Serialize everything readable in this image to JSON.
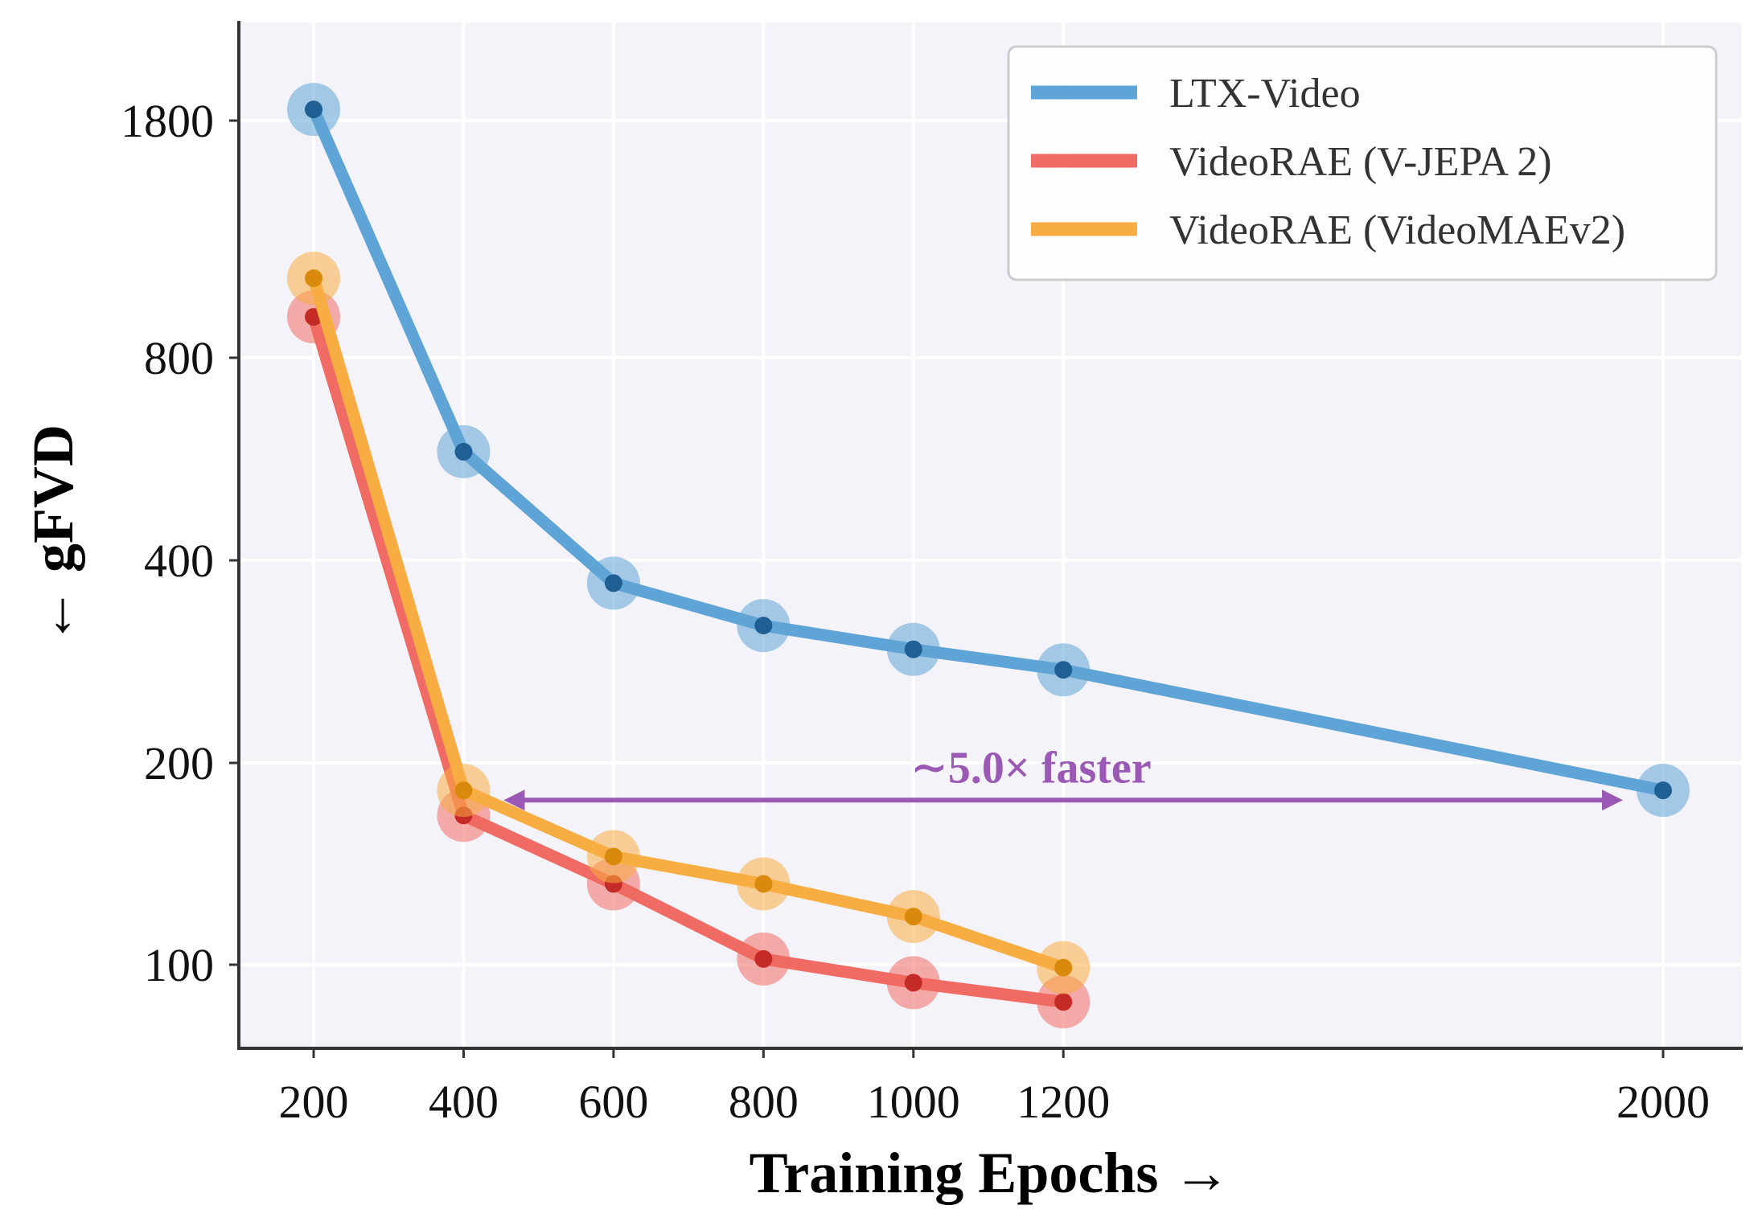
{
  "chart_data": {
    "type": "line",
    "title": "",
    "xlabel": "Training Epochs →",
    "ylabel": "← gFVD",
    "x_ticks": [
      200,
      400,
      600,
      800,
      1000,
      1200,
      2000
    ],
    "y_ticks": [
      1800,
      800,
      400,
      200,
      100
    ],
    "y_scale": "log",
    "xlim": [
      100,
      2100
    ],
    "ylim": [
      80,
      2300
    ],
    "grid": true,
    "legend_position": "top-right",
    "series": [
      {
        "name": "LTX-Video",
        "color": "#5fa4d6",
        "dot_color": "#1f5f93",
        "x": [
          200,
          400,
          600,
          800,
          1000,
          1200,
          2000
        ],
        "y": [
          1870,
          580,
          370,
          320,
          295,
          275,
          182
        ]
      },
      {
        "name": "VideoRAE (V-JEPA 2)",
        "color": "#ef6b63",
        "dot_color": "#c42b27",
        "x": [
          200,
          400,
          600,
          800,
          1000,
          1200
        ],
        "y": [
          920,
          167,
          132,
          102,
          94,
          88
        ]
      },
      {
        "name": "VideoRAE (VideoMAEv2)",
        "color": "#f7ad41",
        "dot_color": "#d98a0c",
        "x": [
          200,
          400,
          600,
          800,
          1000,
          1200
        ],
        "y": [
          1050,
          182,
          145,
          132,
          118,
          99
        ]
      }
    ],
    "annotation": {
      "text": "∼5.0× faster",
      "color": "#9b59b6",
      "from_x": 400,
      "to_x": 2000,
      "y": 176
    }
  }
}
